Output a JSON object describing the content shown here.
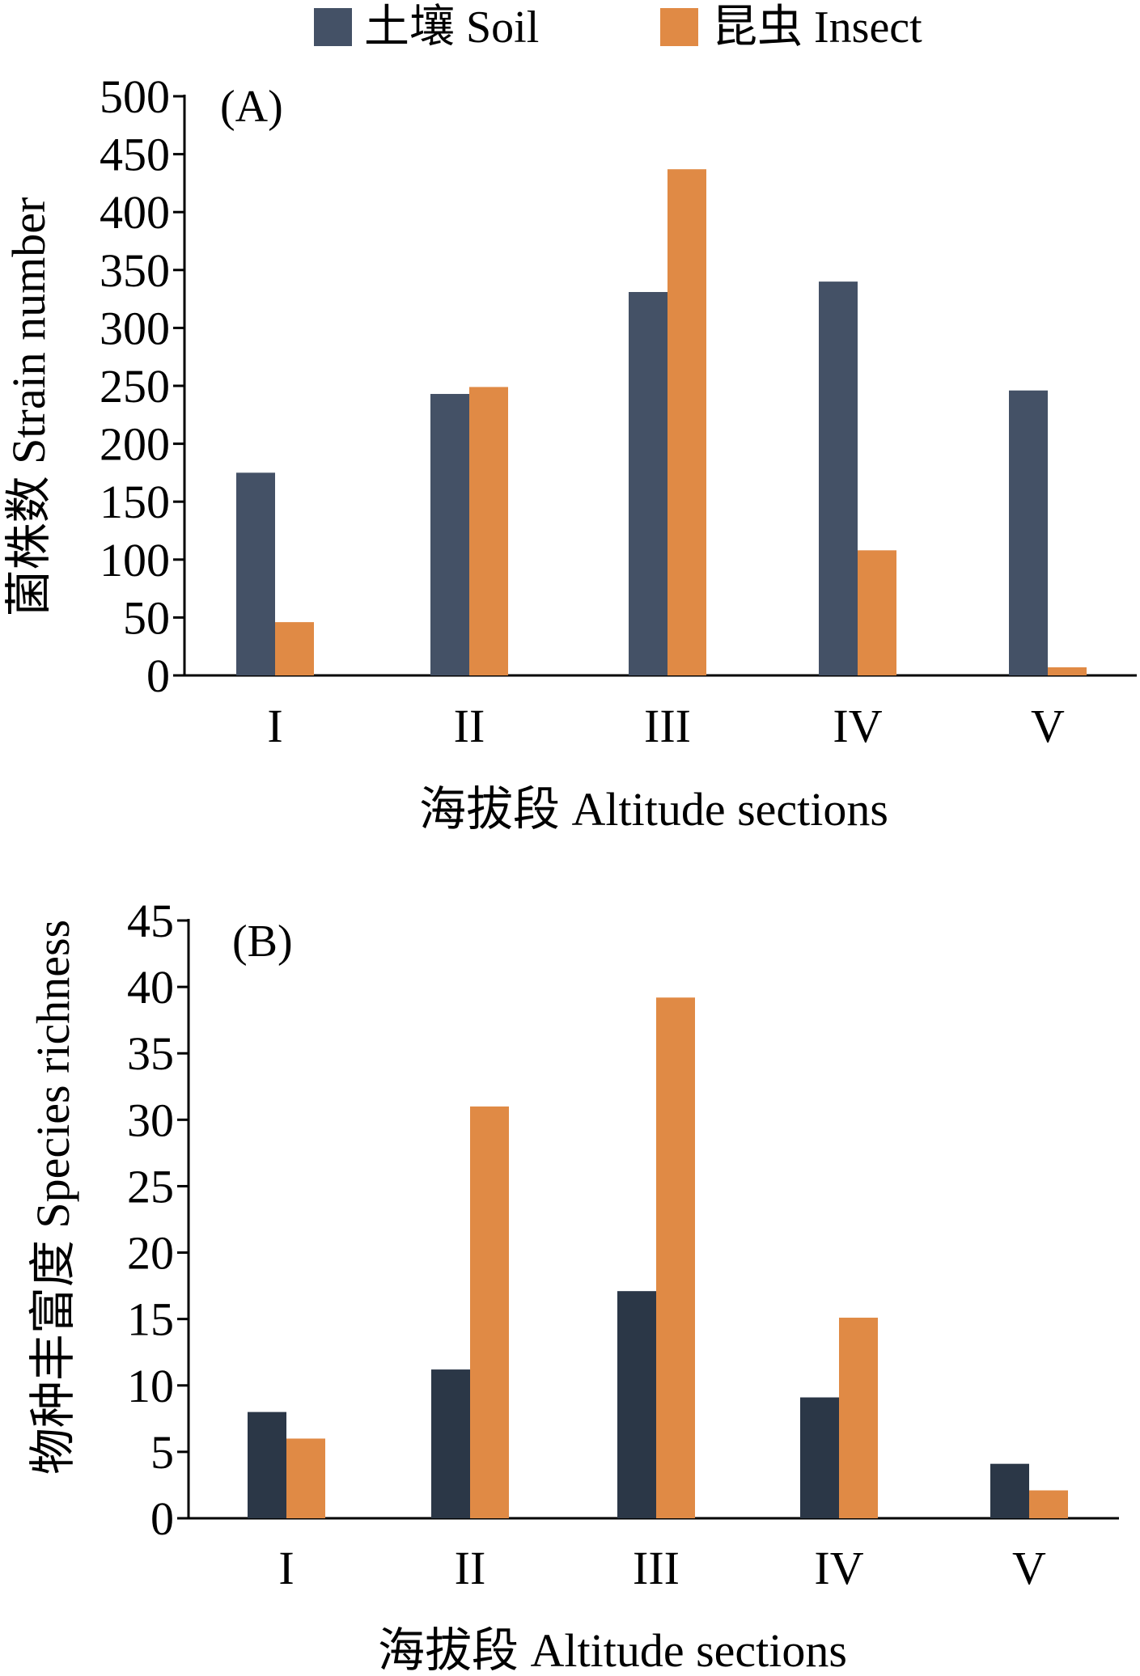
{
  "legend": [
    {
      "label": "土壤 Soil",
      "color": "#445166"
    },
    {
      "label": "昆虫 Insect",
      "color": "#e08a45"
    }
  ],
  "chart_data": [
    {
      "type": "bar",
      "panel_label": "(A)",
      "categories": [
        "I",
        "II",
        "III",
        "IV",
        "V"
      ],
      "series": [
        {
          "name": "土壤 Soil",
          "color": "#445166",
          "values": [
            175,
            243,
            331,
            340,
            246
          ]
        },
        {
          "name": "昆虫 Insect",
          "color": "#e08a45",
          "values": [
            46,
            249,
            437,
            108,
            7
          ]
        }
      ],
      "xlabel": "海拔段 Altitude sections",
      "ylabel": "菌株数 Strain number",
      "ylim": [
        0,
        500
      ],
      "yticks": [
        0,
        50,
        100,
        150,
        200,
        250,
        300,
        350,
        400,
        450,
        500
      ],
      "grid": false
    },
    {
      "type": "bar",
      "panel_label": "(B)",
      "categories": [
        "I",
        "II",
        "III",
        "IV",
        "V"
      ],
      "series": [
        {
          "name": "土壤 Soil",
          "color": "#2b3747",
          "values": [
            8,
            11.2,
            17.1,
            9.1,
            4.1
          ]
        },
        {
          "name": "昆虫 Insect",
          "color": "#e08a45",
          "values": [
            6,
            31,
            39.2,
            15.1,
            2.1
          ]
        }
      ],
      "xlabel": "海拔段 Altitude sections",
      "ylabel": "物种丰富度 Species richness",
      "ylim": [
        0,
        45
      ],
      "yticks": [
        0,
        5,
        10,
        15,
        20,
        25,
        30,
        35,
        40,
        45
      ],
      "grid": false
    }
  ]
}
